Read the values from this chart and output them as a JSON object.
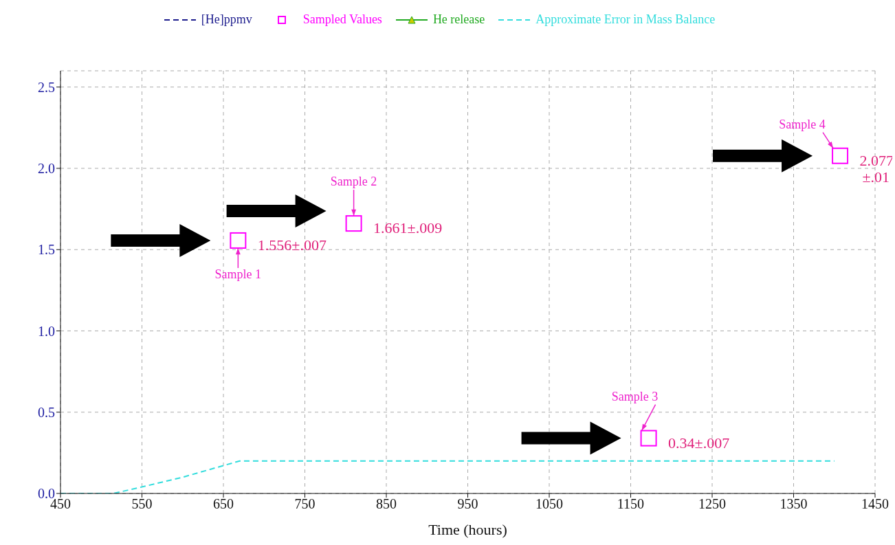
{
  "chart_data": {
    "type": "line",
    "xlabel": "Time (hours)",
    "xlim": [
      450,
      1450
    ],
    "xticks": [
      450,
      550,
      650,
      750,
      850,
      950,
      1050,
      1150,
      1250,
      1350,
      1450
    ],
    "ylim": [
      0,
      2.6
    ],
    "yticks": [
      {
        "value": 0,
        "label": "0.0"
      },
      0.5,
      {
        "value": 1,
        "label": "1.0"
      },
      1.5,
      {
        "value": 2,
        "label": "2.0"
      },
      2.5
    ],
    "grid": true,
    "legend": "top",
    "series": [
      {
        "name": "[He]ppmv",
        "color": "#1a1a8c",
        "line_style": "dashed",
        "marker": "none"
      },
      {
        "name": "Sampled Values",
        "type": "scatter",
        "color": "#ff00ff",
        "marker": "square",
        "x": [
          668,
          810,
          1172,
          1407
        ],
        "values": [
          1.556,
          1.661,
          0.34,
          2.077
        ],
        "value_labels": [
          "1.556±.007",
          "1.661±.009",
          "0.34±.007",
          "2.077 ±.01"
        ]
      },
      {
        "name": "He release",
        "color": "#22aa22",
        "line_style": "solid",
        "marker": "triangle"
      },
      {
        "name": "Approximate Error in Mass Balance",
        "color": "#33dddd",
        "line_style": "dashed",
        "marker": "none",
        "x": [
          450,
          515,
          550,
          600,
          670,
          1400
        ],
        "values": [
          0,
          0,
          0.04,
          0.1,
          0.2,
          0.2
        ]
      }
    ],
    "annotations": [
      {
        "text": "Sample 1",
        "x": 668,
        "y": 1.556
      },
      {
        "text": "Sample 2",
        "x": 810,
        "y": 1.661
      },
      {
        "text": "Sample 3",
        "x": 1172,
        "y": 0.34
      },
      {
        "text": "Sample 4",
        "x": 1407,
        "y": 2.077
      }
    ]
  }
}
